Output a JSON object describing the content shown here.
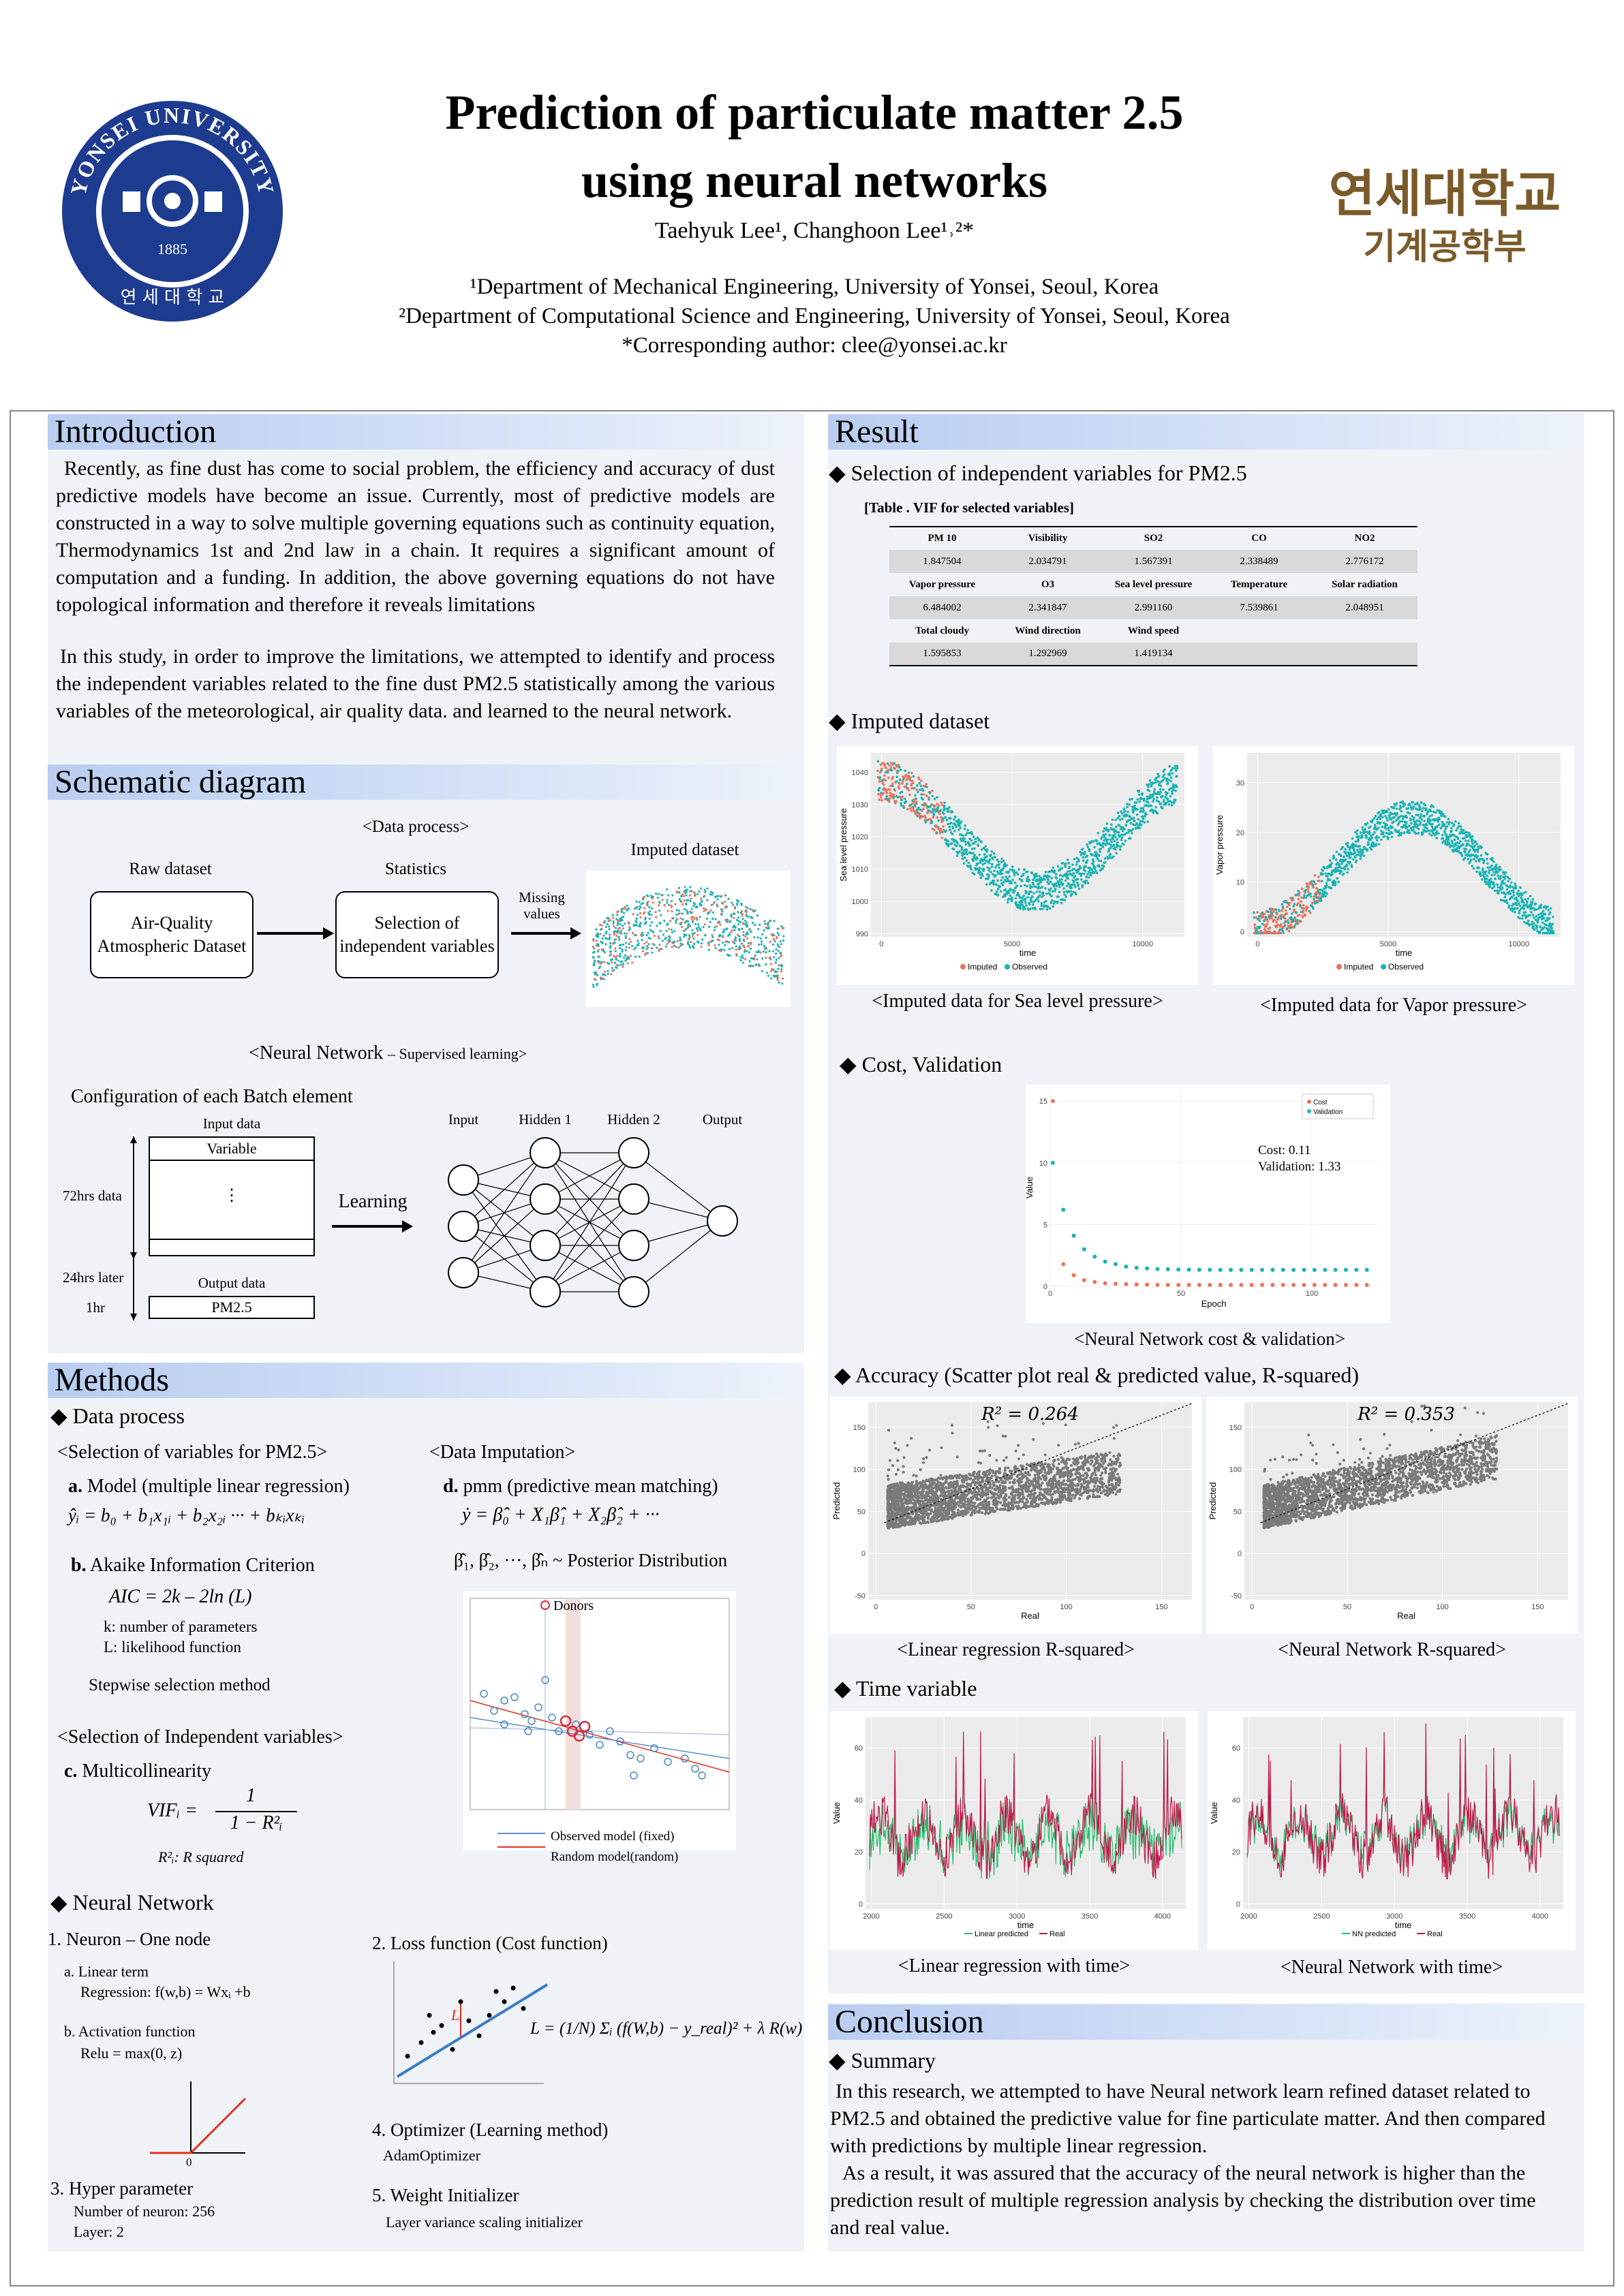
{
  "header": {
    "title_line1": "Prediction of particulate matter 2.5",
    "title_line2": "using neural networks",
    "authors": "Taehyuk Lee¹, Changhoon Lee¹˒²*",
    "affiliation1": "¹Department of Mechanical Engineering, University of Yonsei, Seoul, Korea",
    "affiliation2": "²Department of Computational Science and Engineering, University of Yonsei, Seoul, Korea",
    "corresponding": "*Corresponding author: clee@yonsei.ac.kr",
    "korean_line1": "연세대학교",
    "korean_line2": "기계공학부",
    "logo_text_top": "YONSEI UNIVERSITY",
    "logo_text_bottom": "연 세 대 학 교",
    "logo_year": "1885"
  },
  "introduction": {
    "heading": "Introduction",
    "p1": "Recently, as fine dust has come to social problem, the efficiency and accuracy of dust predictive models have become an issue. Currently, most of predictive models are constructed in a way to solve multiple governing equations such as continuity equation, Thermodynamics 1st and 2nd law in a chain. It requires a significant amount of computation and a funding. In addition, the above governing equations do not have topological information and therefore it reveals limitations",
    "p2": "In this study, in order to improve the limitations, we attempted to identify and process the independent variables related to the fine dust PM2.5 statistically among the various variables of the meteorological, air quality data. and learned to the neural network."
  },
  "schematic": {
    "heading": "Schematic diagram",
    "data_process": "<Data process>",
    "raw_dataset": "Raw dataset",
    "statistics": "Statistics",
    "imputed_dataset": "Imputed dataset",
    "box1": "Air-Quality Atmospheric Dataset",
    "box2": "Selection of independent variables",
    "missing": "Missing values",
    "nn_title": "<Neural Network",
    "nn_sub": "– Supervised learning>",
    "config": "Configuration of each Batch element",
    "input_data": "Input data",
    "variable": "Variable",
    "dots": "⋮",
    "hrs72": "72hrs data",
    "hrs24": "24hrs later",
    "hr1": "1hr",
    "output_data": "Output data",
    "pm25": "PM2.5",
    "learning": "Learning",
    "layers": [
      "Input",
      "Hidden 1",
      "Hidden 2",
      "Output"
    ]
  },
  "methods": {
    "heading": "Methods",
    "data_process": "◆  Data process",
    "sel_vars": "<Selection of variables for PM2.5>",
    "a_label": "a.",
    "a_text": "Model (multiple linear regression)",
    "a_formula": "ŷᵢ = b₀ + b₁x₁ᵢ + b₂x₂ᵢ ··· + bₖᵢxₖᵢ",
    "b_label": "b.",
    "b_text": "Akaike Information Criterion",
    "aic": "AIC = 2k – 2ln (L)",
    "k_def": "k: number of parameters",
    "l_def": "L: likelihood function",
    "stepwise": "Stepwise selection method",
    "sel_indep": "<Selection of Independent variables>",
    "c_label": "c.",
    "c_text": "Multicollinearity",
    "vif_lhs": "VIFᵢ =",
    "vif_num": "1",
    "vif_den": "1 − R²ᵢ",
    "r2_def": "R²ᵢ: R squared",
    "imputation": "<Data Imputation>",
    "d_label": "d.",
    "d_text": "pmm (predictive mean matching)",
    "pmm_formula": "ẏ =  β̂₀ + X₁β̂₁ + X₂β̂₂ + ···",
    "posterior": "β̂₁, β̂₂, ···, β̂ₙ ~ Posterior Distribution",
    "donors": "Donors",
    "observed_model": "Observed model (fixed)",
    "random_model": "Random model(random)",
    "nn_heading": "◆ Neural Network",
    "neuron": "1. Neuron – One node",
    "linear_term": "a. Linear term",
    "regression": "Regression: f(w,b) = Wxᵢ +b",
    "activation": "b. Activation function",
    "relu": "Relu = max(0, z)",
    "relu_zero": "0",
    "hyper": "3. Hyper parameter",
    "neurons": "Number of neuron: 256",
    "layer": "Layer: 2",
    "loss": "2. Loss function (Cost function)",
    "loss_formula": "L = (1/N) Σᵢ (f(W,b) − y_real)² + λ R(w)",
    "li": "Lᵢ",
    "optimizer": "4. Optimizer (Learning method)",
    "adam": "AdamOptimizer",
    "init": "5. Weight Initializer",
    "init_val": "Layer variance scaling initializer"
  },
  "result": {
    "heading": "Result",
    "sel_heading": "◆ Selection of  independent variables for PM2.5",
    "table_caption": "[Table . VIF for selected variables]",
    "vif_table": [
      {
        "names": [
          "PM 10",
          "Visibility",
          "SO2",
          "CO",
          "NO2"
        ],
        "values": [
          "1.847504",
          "2.034791",
          "1.567391",
          "2.338489",
          "2.776172"
        ]
      },
      {
        "names": [
          "Vapor pressure",
          "O3",
          "Sea level pressure",
          "Temperature",
          "Solar radiation"
        ],
        "values": [
          "6.484002",
          "2.341847",
          "2.991160",
          "7.539861",
          "2.048951"
        ]
      },
      {
        "names": [
          "Total cloudy",
          "Wind direction",
          "Wind speed",
          "",
          ""
        ],
        "values": [
          "1.595853",
          "1.292969",
          "1.419134",
          "",
          ""
        ]
      }
    ],
    "imputed_heading": "◆ Imputed dataset",
    "imputed_sea_caption": "<Imputed data for Sea level pressure>",
    "imputed_vapor_caption": "<Imputed data for Vapor pressure>",
    "sea_ylabel": "Sea level pressure",
    "vapor_ylabel": "Vapor pressure",
    "time_label": "time",
    "legend_imputed": "Imputed",
    "legend_observed": "Observed",
    "cost_heading": "◆ Cost, Validation",
    "cost_caption": "<Neural Network cost & validation>",
    "cost_text1": "Cost: 0.11",
    "cost_text2": "Validation: 1.33",
    "legend_cost": "Cost",
    "legend_validation": "Validation",
    "epoch": "Epoch",
    "value": "Value",
    "acc_heading": "◆ Accuracy (Scatter plot real & predicted value, R-squared)",
    "lr_r2": "R² = 0.264",
    "nn_r2": "R² = 0.353",
    "lr_caption": "<Linear regression R-squared>",
    "nn_caption": "<Neural Network R-squared>",
    "predicted": "Predicted",
    "real": "Real",
    "time_heading": "◆ Time variable",
    "lr_time_caption": "<Linear regression with time>",
    "nn_time_caption": "<Neural Network with time>",
    "lr_legend": "Linear predicted",
    "nn_legend": "NN predicted",
    "real_legend": "Real",
    "colors": {
      "imputed": "#f0715a",
      "observed": "#19b3b3",
      "predicted": "#1fbf6a",
      "real": "#c2174a"
    }
  },
  "conclusion": {
    "heading": "Conclusion",
    "summary": "◆ Summary",
    "p1": "In this research, we attempted to have Neural network learn refined dataset related to PM2.5 and obtained the predictive value for fine particulate matter. And then compared with predictions by multiple linear regression.",
    "p2": "As a result, it was assured that the accuracy of the neural network is higher than the prediction result of multiple regression analysis by checking the distribution over time and real value."
  },
  "chart_data": [
    {
      "type": "scatter",
      "title": "",
      "ylabel": "Sea level pressure",
      "xlabel": "time",
      "xticks": [
        "0",
        "5000",
        "10000"
      ],
      "yticks": [
        "990",
        "1000",
        "1010",
        "1020",
        "1030",
        "1040"
      ],
      "series": [
        {
          "name": "Imputed"
        },
        {
          "name": "Observed"
        }
      ]
    },
    {
      "type": "scatter",
      "title": "",
      "ylabel": "Vapor pressure",
      "xlabel": "time",
      "xticks": [
        "0",
        "5000",
        "10000"
      ],
      "yticks": [
        "0",
        "10",
        "20",
        "30"
      ],
      "series": [
        {
          "name": "Imputed"
        },
        {
          "name": "Observed"
        }
      ]
    },
    {
      "type": "scatter",
      "title": "",
      "xlabel": "Epoch",
      "ylabel": "Value",
      "xticks": [
        "0",
        "50",
        "100"
      ],
      "yticks": [
        "0",
        "5",
        "10",
        "15"
      ],
      "series": [
        {
          "name": "Cost",
          "x": [
            1,
            5,
            9,
            13,
            17,
            21,
            25,
            29,
            33,
            37,
            41,
            45,
            49,
            53,
            57,
            61,
            65,
            69,
            73,
            77,
            81,
            85,
            89,
            93,
            97,
            101,
            105,
            109,
            113,
            117,
            121
          ],
          "values": [
            15,
            1.8,
            0.9,
            0.5,
            0.35,
            0.25,
            0.2,
            0.17,
            0.15,
            0.13,
            0.12,
            0.12,
            0.11,
            0.11,
            0.11,
            0.11,
            0.11,
            0.11,
            0.11,
            0.11,
            0.11,
            0.11,
            0.11,
            0.11,
            0.11,
            0.11,
            0.11,
            0.11,
            0.11,
            0.11,
            0.11
          ]
        },
        {
          "name": "Validation",
          "x": [
            1,
            5,
            9,
            13,
            17,
            21,
            25,
            29,
            33,
            37,
            41,
            45,
            49,
            53,
            57,
            61,
            65,
            69,
            73,
            77,
            81,
            85,
            89,
            93,
            97,
            101,
            105,
            109,
            113,
            117,
            121
          ],
          "values": [
            10,
            6.2,
            4.1,
            3.0,
            2.4,
            2.0,
            1.8,
            1.6,
            1.5,
            1.45,
            1.4,
            1.38,
            1.36,
            1.35,
            1.34,
            1.34,
            1.33,
            1.33,
            1.33,
            1.33,
            1.33,
            1.33,
            1.33,
            1.33,
            1.33,
            1.33,
            1.33,
            1.33,
            1.33,
            1.33,
            1.33
          ]
        }
      ]
    },
    {
      "type": "scatter",
      "title": "R² = 0.264",
      "xlabel": "Real",
      "ylabel": "Predicted",
      "xticks": [
        "0",
        "50",
        "100",
        "150"
      ],
      "yticks": [
        "-50",
        "0",
        "50",
        "100",
        "150"
      ]
    },
    {
      "type": "scatter",
      "title": "R² = 0.353",
      "xlabel": "Real",
      "ylabel": "Predicted",
      "xticks": [
        "0",
        "50",
        "100",
        "150"
      ],
      "yticks": [
        "-50",
        "0",
        "50",
        "100",
        "150"
      ]
    },
    {
      "type": "line",
      "title": "",
      "xlabel": "time",
      "ylabel": "Value",
      "xticks": [
        "2000",
        "2500",
        "3000",
        "3500",
        "4000"
      ],
      "yticks": [
        "0",
        "20",
        "40",
        "60"
      ],
      "series": [
        {
          "name": "Linear predicted"
        },
        {
          "name": "Real"
        }
      ]
    },
    {
      "type": "line",
      "title": "",
      "xlabel": "time",
      "ylabel": "Value",
      "xticks": [
        "2000",
        "2500",
        "3000",
        "3500",
        "4000"
      ],
      "yticks": [
        "0",
        "20",
        "40",
        "60"
      ],
      "series": [
        {
          "name": "NN predicted"
        },
        {
          "name": "Real"
        }
      ]
    }
  ]
}
